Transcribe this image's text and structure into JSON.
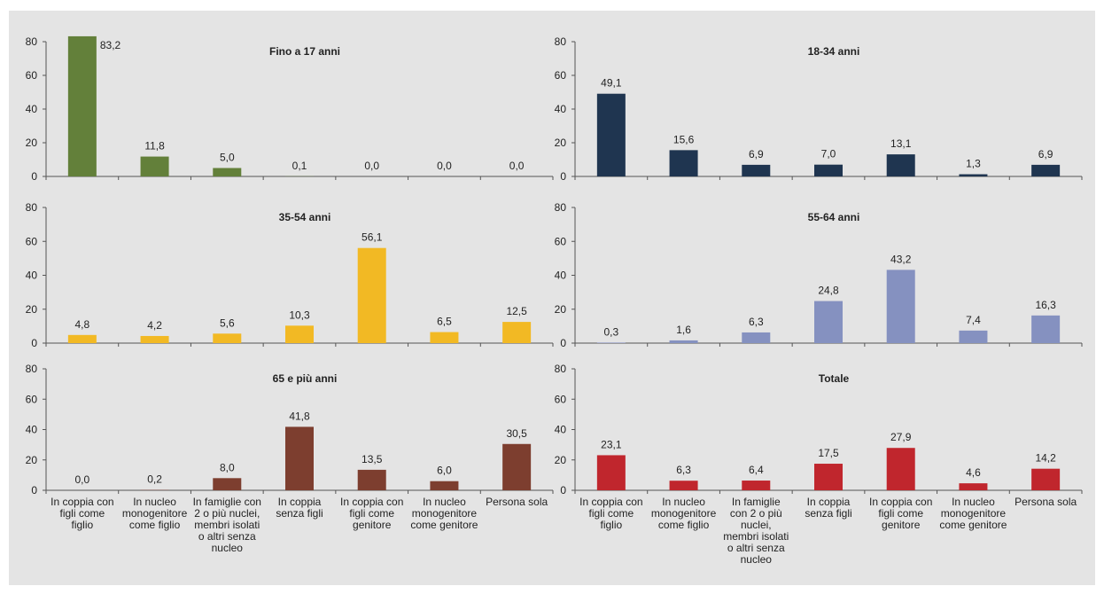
{
  "chart_data": [
    {
      "type": "bar",
      "title": "Fino a 17 anni",
      "color": "#63803a",
      "ylim": [
        0,
        80
      ],
      "yticks": [
        "0",
        "20",
        "40",
        "60",
        "80"
      ],
      "categories": [
        "In coppia con figli come figlio",
        "In nucleo monogenitore come figlio",
        "In famiglie con 2 o più nuclei, membri isolati o altri senza nucleo",
        "In coppia senza figli",
        "In coppia con figli come genitore",
        "In nucleo monogenitore come genitore",
        "Persona sola"
      ],
      "values": [
        83.2,
        11.8,
        5.0,
        0.1,
        0.0,
        0.0,
        0.0
      ],
      "labels": [
        "83,2",
        "11,8",
        "5,0",
        "0,1",
        "0,0",
        "0,0",
        "0,0"
      ]
    },
    {
      "type": "bar",
      "title": "18-34 anni",
      "color": "#1f3550",
      "ylim": [
        0,
        80
      ],
      "yticks": [
        "0",
        "20",
        "40",
        "60",
        "80"
      ],
      "categories": [
        "In coppia con figli come figlio",
        "In nucleo monogenitore come figlio",
        "In famiglie con 2 o più nuclei, membri isolati o altri senza nucleo",
        "In coppia senza figli",
        "In coppia con figli come genitore",
        "In nucleo monogenitore come genitore",
        "Persona sola"
      ],
      "values": [
        49.1,
        15.6,
        6.9,
        7.0,
        13.1,
        1.3,
        6.9
      ],
      "labels": [
        "49,1",
        "15,6",
        "6,9",
        "7,0",
        "13,1",
        "1,3",
        "6,9"
      ]
    },
    {
      "type": "bar",
      "title": "35-54 anni",
      "color": "#f2b924",
      "ylim": [
        0,
        80
      ],
      "yticks": [
        "0",
        "20",
        "40",
        "60",
        "80"
      ],
      "categories": [
        "In coppia con figli come figlio",
        "In nucleo monogenitore come figlio",
        "In famiglie con 2 o più nuclei, membri isolati o altri senza nucleo",
        "In coppia senza figli",
        "In coppia con figli come genitore",
        "In nucleo monogenitore come genitore",
        "Persona sola"
      ],
      "values": [
        4.8,
        4.2,
        5.6,
        10.3,
        56.1,
        6.5,
        12.5
      ],
      "labels": [
        "4,8",
        "4,2",
        "5,6",
        "10,3",
        "56,1",
        "6,5",
        "12,5"
      ]
    },
    {
      "type": "bar",
      "title": "55-64 anni",
      "color": "#8591c0",
      "ylim": [
        0,
        80
      ],
      "yticks": [
        "0",
        "20",
        "40",
        "60",
        "80"
      ],
      "categories": [
        "In coppia con figli come figlio",
        "In nucleo monogenitore come figlio",
        "In famiglie con 2 o più nuclei, membri isolati o altri senza nucleo",
        "In coppia senza figli",
        "In coppia con figli come genitore",
        "In nucleo monogenitore come genitore",
        "Persona sola"
      ],
      "values": [
        0.3,
        1.6,
        6.3,
        24.8,
        43.2,
        7.4,
        16.3
      ],
      "labels": [
        "0,3",
        "1,6",
        "6,3",
        "24,8",
        "43,2",
        "7,4",
        "16,3"
      ]
    },
    {
      "type": "bar",
      "title": "65 e più anni",
      "color": "#7d3e2f",
      "ylim": [
        0,
        80
      ],
      "yticks": [
        "0",
        "20",
        "40",
        "60",
        "80"
      ],
      "categories": [
        "In coppia con figli come figlio",
        "In nucleo monogenitore come figlio",
        "In famiglie con 2 o più nuclei, membri isolati o altri senza nucleo",
        "In coppia senza figli",
        "In coppia con figli come genitore",
        "In nucleo monogenitore come genitore",
        "Persona sola"
      ],
      "values": [
        0.0,
        0.2,
        8.0,
        41.8,
        13.5,
        6.0,
        30.5
      ],
      "labels": [
        "0,0",
        "0,2",
        "8,0",
        "41,8",
        "13,5",
        "6,0",
        "30,5"
      ]
    },
    {
      "type": "bar",
      "title": "Totale",
      "color": "#c0262d",
      "ylim": [
        0,
        80
      ],
      "yticks": [
        "0",
        "20",
        "40",
        "60",
        "80"
      ],
      "categories": [
        "In coppia con figli come figlio",
        "In nucleo monogenitore come figlio",
        "In famiglie con 2 o più nuclei, membri isolati o altri senza nucleo",
        "In coppia senza figli",
        "In coppia con figli come genitore",
        "In nucleo monogenitore come genitore",
        "Persona sola"
      ],
      "values": [
        23.1,
        6.3,
        6.4,
        17.5,
        27.9,
        4.6,
        14.2
      ],
      "labels": [
        "23,1",
        "6,3",
        "6,4",
        "17,5",
        "27,9",
        "4,6",
        "14,2"
      ]
    }
  ],
  "category_lines": {
    "left": [
      [
        "In coppia con",
        "figli come",
        "figlio"
      ],
      [
        "In nucleo",
        "monogenitore",
        "come figlio"
      ],
      [
        "In famiglie con",
        "2 o più nuclei,",
        "membri isolati",
        "o altri senza",
        "nucleo"
      ],
      [
        "In coppia",
        "senza figli"
      ],
      [
        "In coppia con",
        "figli come",
        "genitore"
      ],
      [
        "In nucleo",
        "monogenitore",
        "come genitore"
      ],
      [
        "Persona sola"
      ]
    ],
    "right": [
      [
        "In coppia con",
        "figli come",
        "figlio"
      ],
      [
        "In nucleo",
        "monogenitore",
        "come figlio"
      ],
      [
        "In famiglie",
        "con 2 o più",
        "nuclei,",
        "membri isolati",
        "o altri senza",
        "nucleo"
      ],
      [
        "In coppia",
        "senza figli"
      ],
      [
        "In coppia con",
        "figli come",
        "genitore"
      ],
      [
        "In nucleo",
        "monogenitore",
        "come genitore"
      ],
      [
        "Persona sola"
      ]
    ]
  }
}
